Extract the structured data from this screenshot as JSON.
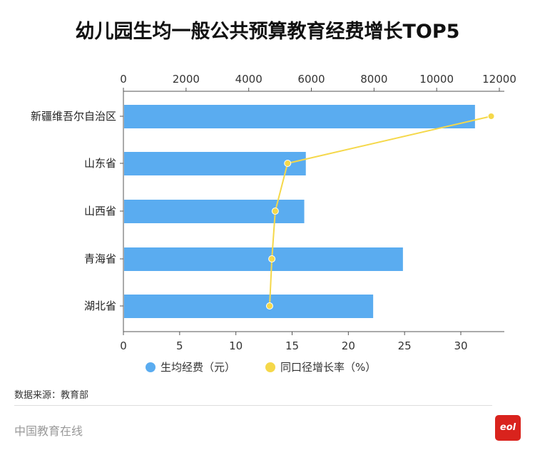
{
  "chart_data": {
    "type": "bar+line",
    "title": "幼儿园生均一般公共预算教育经费增长TOP5",
    "categories": [
      "新疆维吾尔自治区",
      "山东省",
      "山西省",
      "青海省",
      "湖北省"
    ],
    "series": [
      {
        "name": "生均经费（元）",
        "type": "bar",
        "axis": "top",
        "values": [
          11200,
          5800,
          5750,
          8900,
          7950
        ],
        "color": "#5aacf0"
      },
      {
        "name": "同口径增长率（%）",
        "type": "line",
        "axis": "bottom",
        "values": [
          32.7,
          14.6,
          13.5,
          13.2,
          13.0
        ],
        "color": "#f5d84a"
      }
    ],
    "top_axis": {
      "range": [
        0,
        12000
      ],
      "ticks": [
        0,
        2000,
        4000,
        6000,
        8000,
        10000,
        12000
      ]
    },
    "bottom_axis": {
      "range": [
        0,
        30
      ],
      "ticks": [
        0,
        5,
        10,
        15,
        20,
        25,
        30
      ]
    },
    "legend": "bottom",
    "grid": false
  },
  "source": "数据来源：教育部",
  "footer": "中国教育在线",
  "logo_text": "eol"
}
